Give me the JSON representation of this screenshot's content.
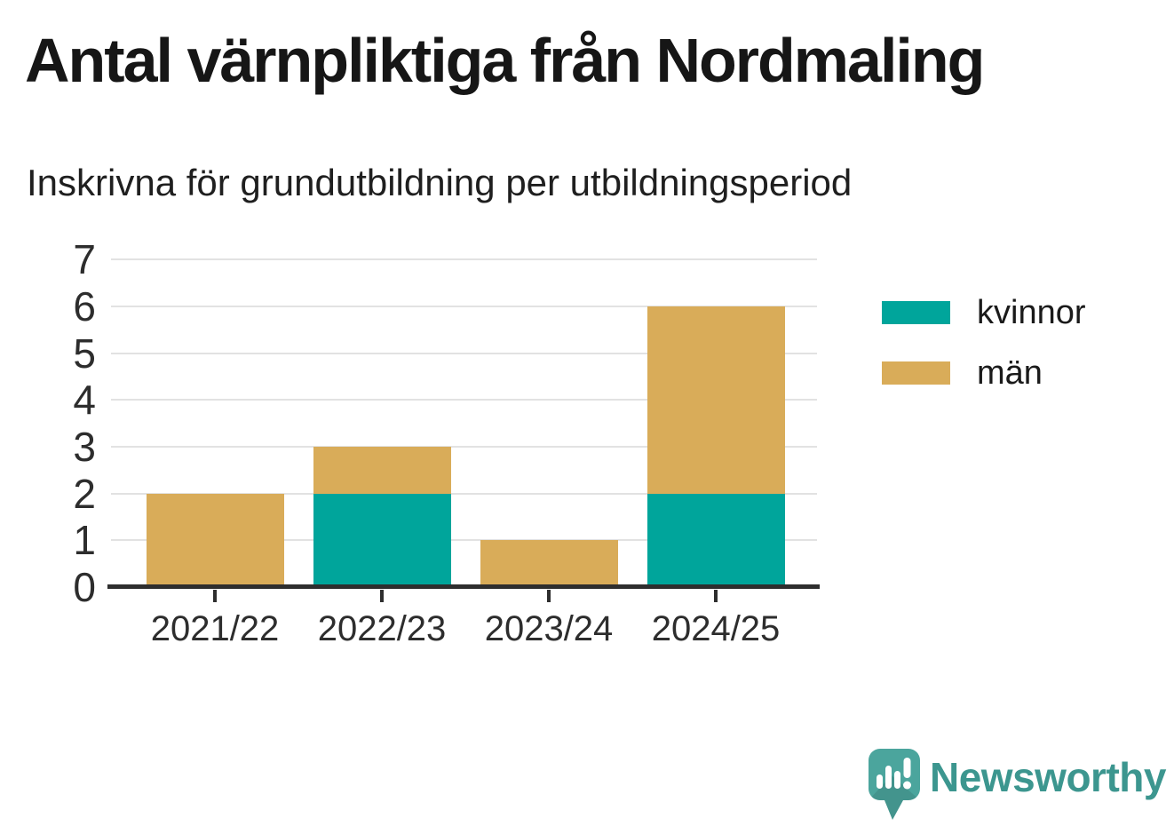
{
  "header": {
    "title": "Antal värnpliktiga från Nordmaling",
    "subtitle": "Inskrivna för grundutbildning per utbildningsperiod"
  },
  "chart_data": {
    "type": "bar",
    "stacked": true,
    "categories": [
      "2021/22",
      "2022/23",
      "2023/24",
      "2024/25"
    ],
    "series": [
      {
        "name": "kvinnor",
        "color": "#00a59b",
        "values": [
          0,
          2,
          0,
          2
        ]
      },
      {
        "name": "män",
        "color": "#d9ac59",
        "values": [
          2,
          1,
          1,
          4
        ]
      }
    ],
    "totals": [
      2,
      3,
      1,
      6
    ],
    "ylim": [
      0,
      7
    ],
    "yticks": [
      0,
      1,
      2,
      3,
      4,
      5,
      6,
      7
    ],
    "xlabel": "",
    "ylabel": "",
    "grid": "horizontal",
    "legend_position": "right-top",
    "colors": {
      "gridline": "#e2e2e2",
      "axis": "#2e2e2e",
      "tick_text": "#2d2d2d",
      "title_text": "#161616"
    }
  },
  "footer": {
    "brand": "Newsworthy",
    "brand_color": "#3c968f",
    "icon": "speech-bubble-bar-chart-icon",
    "icon_color": "#4ba59d"
  }
}
